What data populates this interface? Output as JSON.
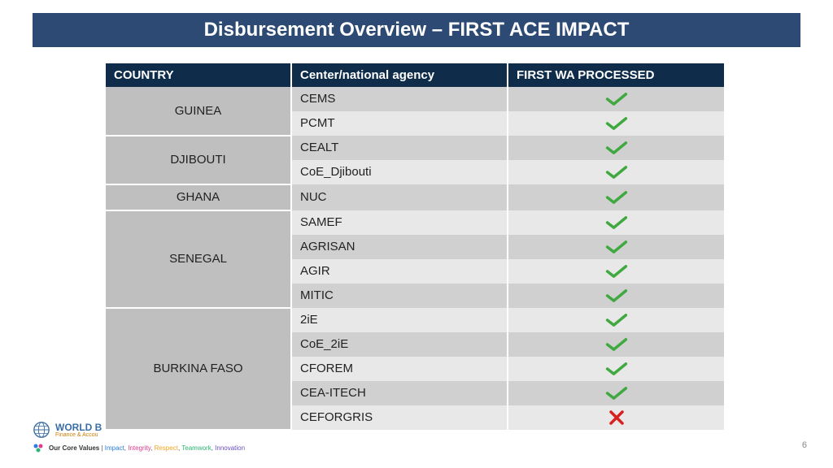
{
  "title": "Disbursement Overview – FIRST ACE IMPACT",
  "columns": [
    "COUNTRY",
    "Center/national agency",
    "FIRST WA PROCESSED"
  ],
  "colors": {
    "title_bg": "#2c4a73",
    "header_bg": "#0f2d4a",
    "country_bg": "#bfbfbf",
    "row_alt_a": "#d0d0d0",
    "row_alt_b": "#e8e8e8",
    "check": "#3fa93f",
    "cross": "#d8201f"
  },
  "rows": [
    {
      "country": "GUINEA",
      "agency": "CEMS",
      "status": "check"
    },
    {
      "country": "",
      "agency": "PCMT",
      "status": "check"
    },
    {
      "country": "DJIBOUTI",
      "agency": "CEALT",
      "status": "check"
    },
    {
      "country": "",
      "agency": "CoE_Djibouti",
      "status": "check"
    },
    {
      "country": "GHANA",
      "agency": "NUC",
      "status": "check"
    },
    {
      "country": "SENEGAL",
      "agency": "SAMEF",
      "status": "check"
    },
    {
      "country": "",
      "agency": "AGRISAN",
      "status": "check"
    },
    {
      "country": "",
      "agency": "AGIR",
      "status": "check"
    },
    {
      "country": "",
      "agency": "MITIC",
      "status": "check"
    },
    {
      "country": "BURKINA FASO",
      "agency": "2iE",
      "status": "check"
    },
    {
      "country": "",
      "agency": "CoE_2iE",
      "status": "check"
    },
    {
      "country": "",
      "agency": "CFOREM",
      "status": "check"
    },
    {
      "country": "",
      "agency": "CEA-ITECH",
      "status": "check"
    },
    {
      "country": "",
      "agency": "CEFORGRIS",
      "status": "cross"
    }
  ],
  "country_spans": [
    {
      "start": 0,
      "span": 2,
      "label": "GUINEA"
    },
    {
      "start": 2,
      "span": 2,
      "label": "DJIBOUTI"
    },
    {
      "start": 4,
      "span": 1,
      "label": "GHANA"
    },
    {
      "start": 5,
      "span": 4,
      "label": "SENEGAL"
    },
    {
      "start": 9,
      "span": 5,
      "label": "BURKINA FASO"
    }
  ],
  "footer": {
    "brand_top": "WORLD B",
    "brand_sub": "Finance & Accou",
    "values_prefix": "Our Core Values",
    "values": [
      "Impact",
      "Integrity",
      "Respect",
      "Teamwork",
      "Innovation"
    ]
  },
  "page_number": "6"
}
